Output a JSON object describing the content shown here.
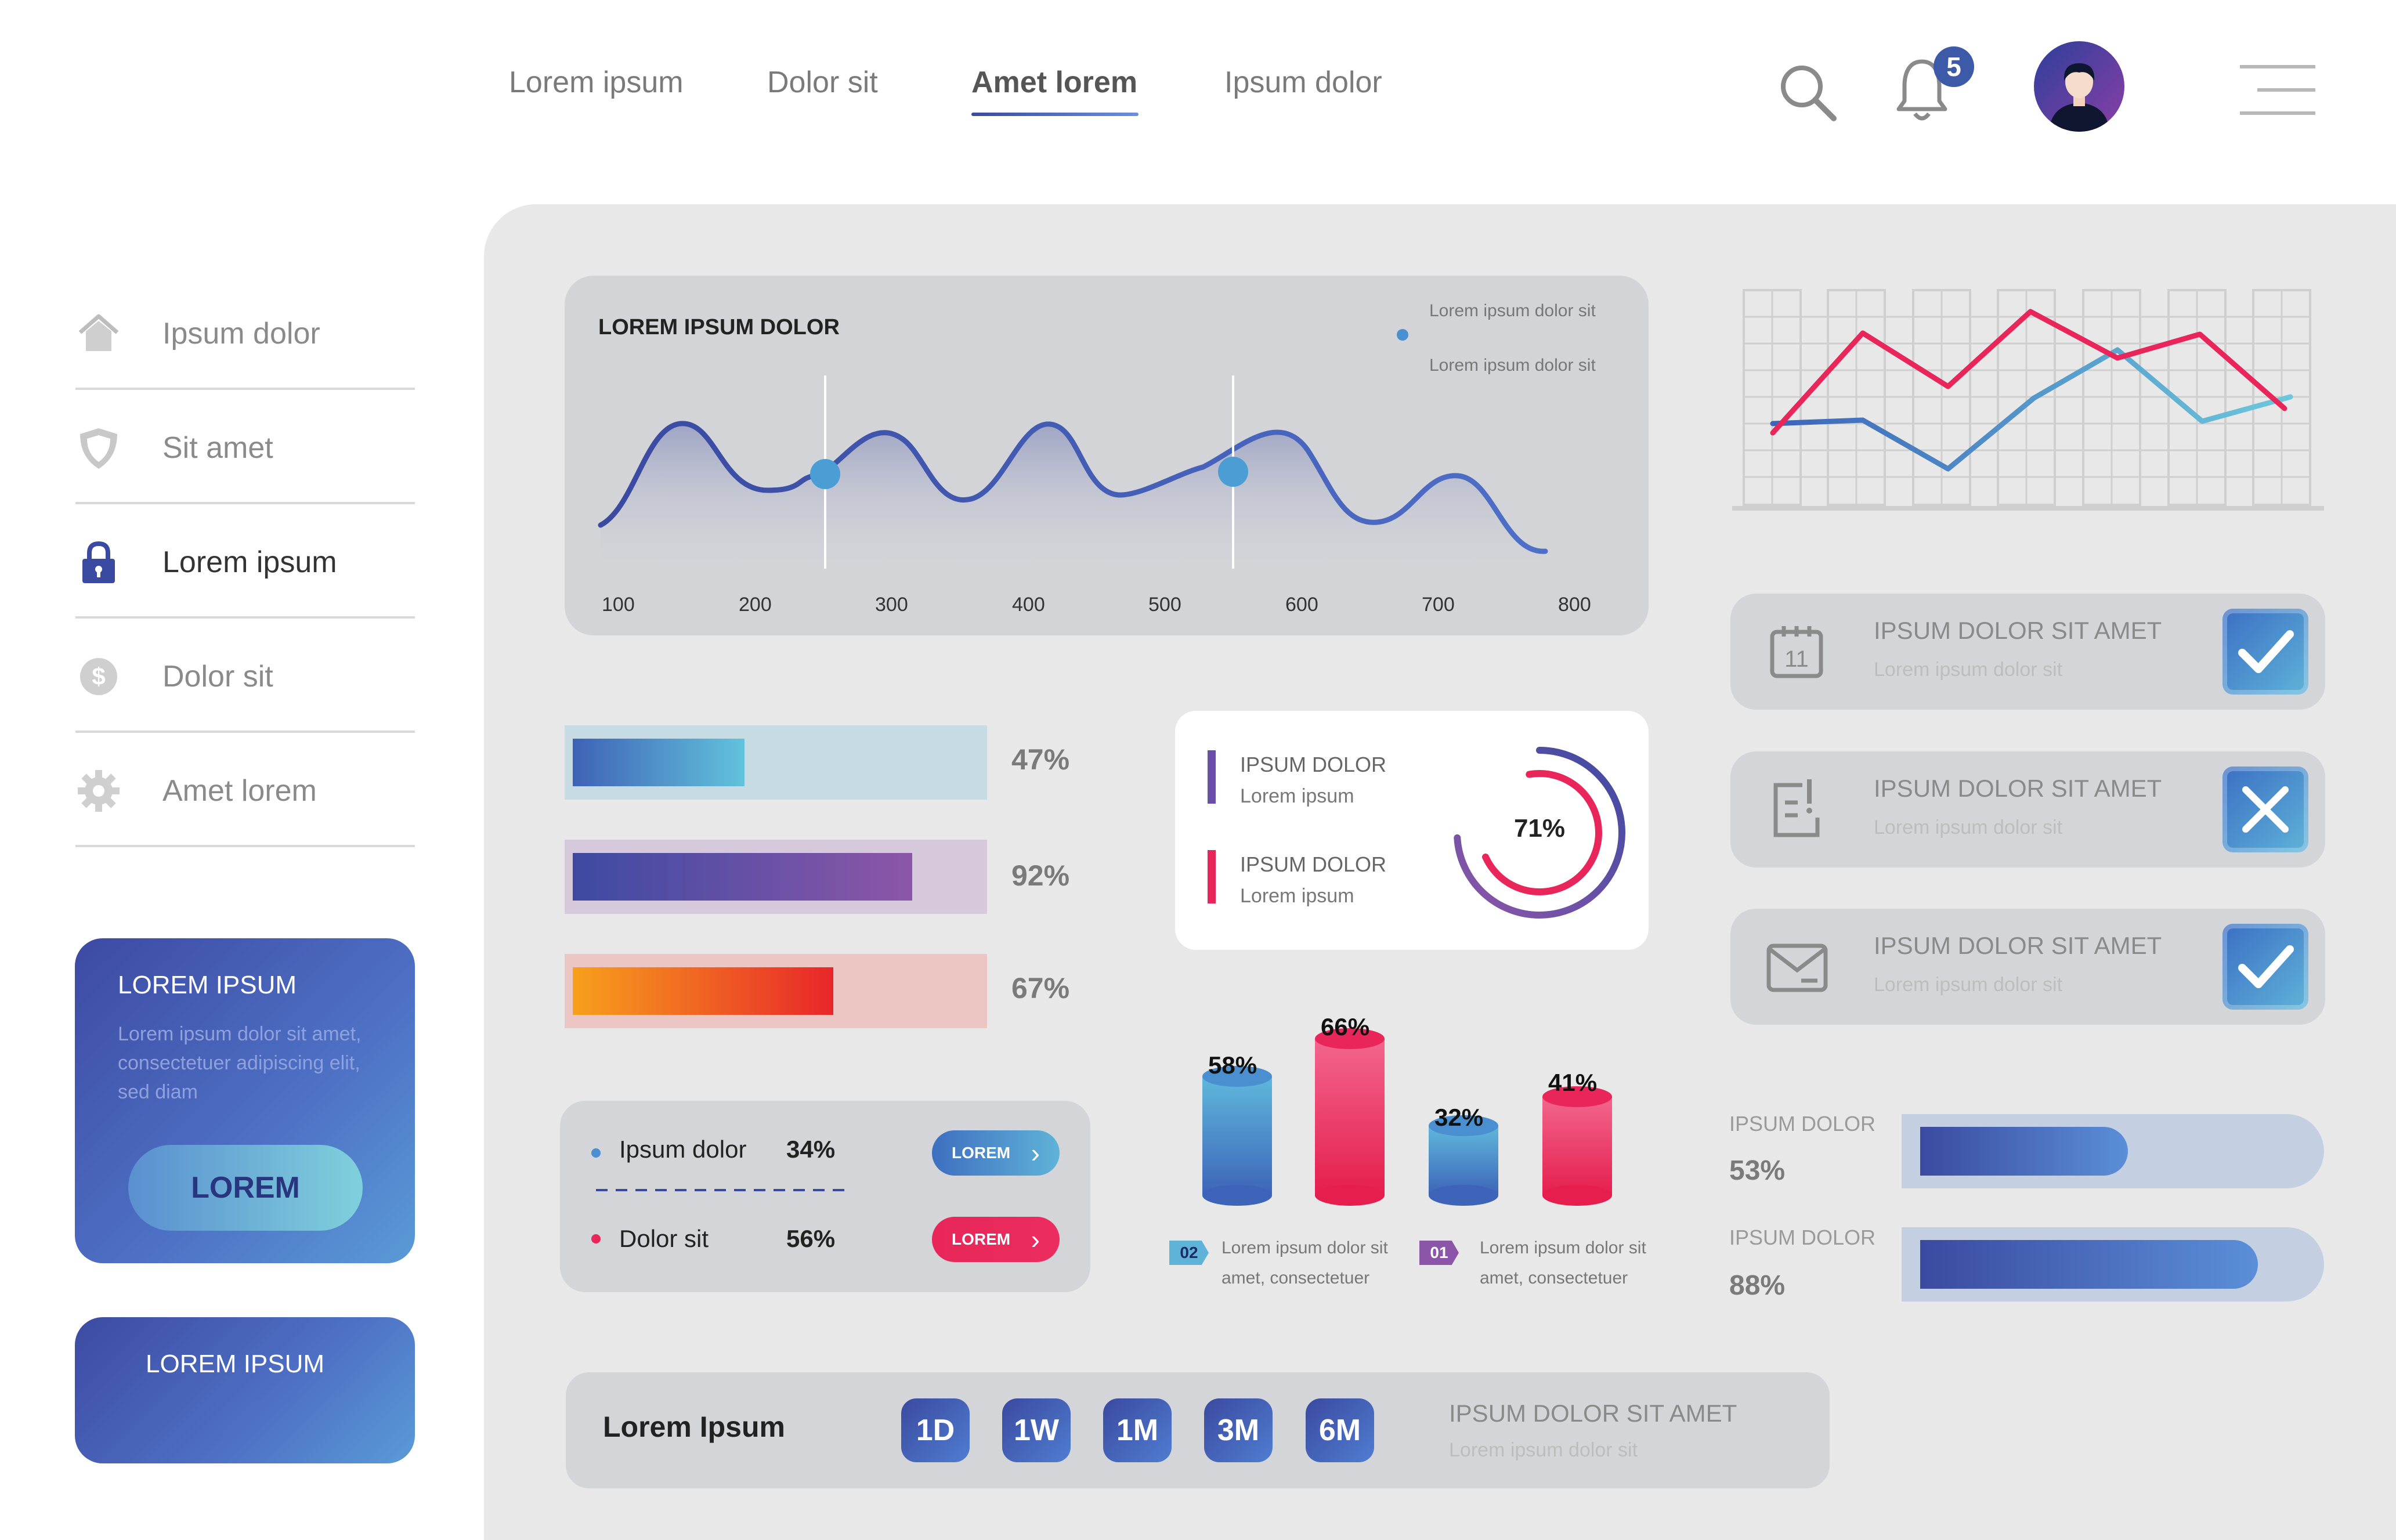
{
  "nav": {
    "items": [
      {
        "label": "Lorem ipsum"
      },
      {
        "label": "Dolor sit"
      },
      {
        "label": "Amet lorem"
      },
      {
        "label": "Ipsum dolor"
      }
    ],
    "active_index": 2,
    "notification_count": "5",
    "icons": [
      "search-icon",
      "bell-icon",
      "avatar",
      "menu-icon"
    ]
  },
  "sidebar": {
    "items": [
      {
        "label": "Ipsum dolor",
        "icon": "home-icon"
      },
      {
        "label": "Sit amet",
        "icon": "shield-icon"
      },
      {
        "label": "Lorem ipsum",
        "icon": "lock-icon",
        "active": true
      },
      {
        "label": "Dolor sit",
        "icon": "dollar-icon"
      },
      {
        "label": "Amet lorem",
        "icon": "gear-icon"
      }
    ],
    "promo": {
      "title": "LOREM IPSUM",
      "text": "Lorem ipsum dolor sit amet, consectetuer adipiscing elit, sed diam",
      "button": "LOREM"
    },
    "card2": {
      "title": "LOREM IPSUM"
    }
  },
  "wave_card": {
    "title": "LOREM IPSUM DOLOR",
    "legend": [
      "Lorem ipsum dolor sit",
      "Lorem ipsum dolor sit"
    ],
    "legend_colors": [
      "#4a8fd0",
      "#e8265a"
    ],
    "x_ticks": [
      "100",
      "200",
      "300",
      "400",
      "500",
      "600",
      "700",
      "800"
    ]
  },
  "progress_bars": [
    {
      "label": "47%",
      "value": 0.47
    },
    {
      "label": "92%",
      "value": 0.92
    },
    {
      "label": "67%",
      "value": 0.67
    }
  ],
  "donut_card": {
    "items": [
      {
        "title": "IPSUM DOLOR",
        "sub": "Lorem ipsum",
        "color": "#6a4fa8"
      },
      {
        "title": "IPSUM DOLOR",
        "sub": "Lorem ipsum",
        "color": "#e8265a"
      }
    ],
    "value_label": "71%",
    "value": 0.71
  },
  "legend_card": {
    "items": [
      {
        "label": "Ipsum dolor",
        "pct": "34%",
        "button": "LOREM",
        "color": "#4a8fd0"
      },
      {
        "label": "Dolor sit",
        "pct": "56%",
        "button": "LOREM",
        "color": "#e8265a"
      }
    ]
  },
  "cylinders": {
    "items": [
      {
        "label": "58%",
        "value": 58,
        "color": "blue"
      },
      {
        "label": "66%",
        "value": 66,
        "color": "red"
      },
      {
        "label": "32%",
        "value": 32,
        "color": "blue"
      },
      {
        "label": "41%",
        "value": 41,
        "color": "red"
      }
    ],
    "notes": [
      {
        "tag": "02",
        "line1": "Lorem ipsum dolor sit",
        "line2": "amet, consectetuer"
      },
      {
        "tag": "01",
        "line1": "Lorem ipsum dolor sit",
        "line2": "amet, consectetuer"
      }
    ]
  },
  "todos": [
    {
      "title": "IPSUM DOLOR SIT AMET",
      "sub": "Lorem ipsum dolor sit",
      "icon": "calendar-icon",
      "state": "check"
    },
    {
      "title": "IPSUM DOLOR SIT AMET",
      "sub": "Lorem ipsum dolor sit",
      "icon": "clipboard-icon",
      "state": "cross"
    },
    {
      "title": "IPSUM DOLOR SIT AMET",
      "sub": "Lorem ipsum dolor sit",
      "icon": "mail-icon",
      "state": "check"
    }
  ],
  "right_bars": [
    {
      "label": "IPSUM DOLOR",
      "pct": "53%",
      "value": 0.53
    },
    {
      "label": "IPSUM DOLOR",
      "pct": "88%",
      "value": 0.88
    }
  ],
  "timeframe": {
    "title": "Lorem Ipsum",
    "buttons": [
      "1D",
      "1W",
      "1M",
      "3M",
      "6M"
    ],
    "right_title": "IPSUM DOLOR SIT AMET",
    "right_sub": "Lorem ipsum dolor sit"
  },
  "colors": {
    "accent_blue": "#3a4aa0",
    "accent_red": "#e8265a",
    "light_blue": "#5fb3d8",
    "panel_bg": "#e8e8e8",
    "card_bg": "#d4d5d8"
  }
}
